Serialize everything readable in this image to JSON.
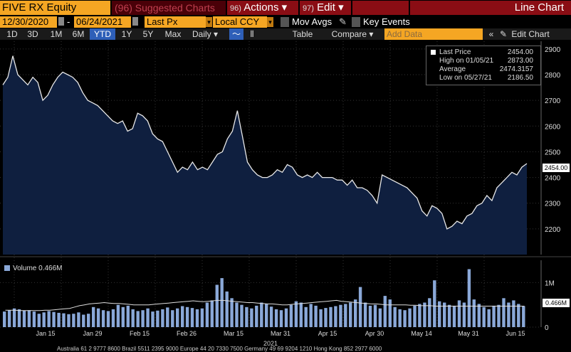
{
  "toolbar": {
    "ticker": "FIVE RX Equity",
    "suggested": "Suggested Charts",
    "suggested_num": "(96)",
    "actions_num": "96)",
    "actions": "Actions ▾",
    "edit_num": "97)",
    "edit": "Edit ▾",
    "title": "Line Chart"
  },
  "controls": {
    "start_date": "12/30/2020",
    "end_date": "06/24/2021",
    "field": "Last Px",
    "currency": "Local CCY",
    "mov_avgs": "Mov Avgs",
    "key_events": "Key Events"
  },
  "periods": [
    "1D",
    "3D",
    "1M",
    "6M",
    "YTD",
    "1Y",
    "5Y",
    "Max"
  ],
  "selected_period": "YTD",
  "frequency": "Daily ▾",
  "table_label": "Table",
  "compare_label": "Compare ▾",
  "add_data_placeholder": "Add Data",
  "edit_chart_label": "Edit Chart",
  "legend": {
    "last_price_label": "Last Price",
    "last_price_value": "2454.00",
    "high_label": "High on 01/05/21",
    "high_value": "2873.00",
    "avg_label": "Average",
    "avg_value": "2474.3157",
    "low_label": "Low on 05/27/21",
    "low_value": "2186.50"
  },
  "last_tag": "2454.00",
  "volume_label": "Volume 0.466M",
  "volume_tag": "0.466M",
  "year_label": "2021",
  "footer": "Australia 61 2 9777 8600 Brazil 5511 2395 9000 Europe 44 20 7330 7500 Germany 49 69 9204 1210 Hong Kong 852 2977 6000",
  "colors": {
    "accent_orange": "#f5a623",
    "header_red": "#8a0d14",
    "area_fill": "#0f1f3f",
    "line": "#e8e8e8",
    "volume_bar": "#8aa8d8"
  },
  "chart_data": {
    "type": "area",
    "price_axis": {
      "ylim": [
        2100,
        2930
      ],
      "ticks": [
        2200,
        2300,
        2400,
        2500,
        2600,
        2700,
        2800,
        2900
      ]
    },
    "volume_axis": {
      "ylim": [
        0,
        1.5
      ],
      "ticks": [
        "0",
        "1M"
      ],
      "tick_values": [
        0,
        1
      ]
    },
    "x_ticks": [
      "Jan 15",
      "Jan 29",
      "Feb 15",
      "Feb 26",
      "Mar 15",
      "Mar 31",
      "Apr 15",
      "Apr 30",
      "May 14",
      "May 31",
      "Jun 15"
    ],
    "price": [
      2760,
      2790,
      2873,
      2800,
      2780,
      2760,
      2790,
      2770,
      2700,
      2720,
      2760,
      2790,
      2810,
      2800,
      2790,
      2770,
      2730,
      2700,
      2690,
      2680,
      2660,
      2640,
      2620,
      2610,
      2620,
      2580,
      2590,
      2650,
      2640,
      2620,
      2570,
      2550,
      2540,
      2500,
      2460,
      2420,
      2440,
      2430,
      2460,
      2430,
      2440,
      2430,
      2460,
      2490,
      2500,
      2550,
      2580,
      2660,
      2560,
      2460,
      2430,
      2410,
      2400,
      2400,
      2410,
      2430,
      2420,
      2450,
      2440,
      2410,
      2400,
      2410,
      2400,
      2420,
      2400,
      2400,
      2400,
      2390,
      2390,
      2370,
      2390,
      2360,
      2360,
      2350,
      2330,
      2300,
      2410,
      2400,
      2390,
      2380,
      2370,
      2360,
      2340,
      2320,
      2270,
      2250,
      2290,
      2280,
      2260,
      2200,
      2210,
      2230,
      2220,
      2250,
      2260,
      2290,
      2300,
      2330,
      2310,
      2360,
      2380,
      2400,
      2420,
      2410,
      2440,
      2454
    ],
    "volume": [
      0.35,
      0.38,
      0.42,
      0.4,
      0.37,
      0.38,
      0.35,
      0.3,
      0.33,
      0.36,
      0.34,
      0.32,
      0.31,
      0.29,
      0.3,
      0.33,
      0.28,
      0.3,
      0.45,
      0.42,
      0.38,
      0.36,
      0.4,
      0.5,
      0.45,
      0.48,
      0.4,
      0.36,
      0.38,
      0.42,
      0.35,
      0.37,
      0.4,
      0.44,
      0.38,
      0.42,
      0.47,
      0.45,
      0.43,
      0.4,
      0.42,
      0.55,
      0.6,
      0.95,
      1.1,
      0.8,
      0.65,
      0.55,
      0.5,
      0.45,
      0.42,
      0.48,
      0.55,
      0.52,
      0.46,
      0.4,
      0.38,
      0.42,
      0.5,
      0.58,
      0.55,
      0.45,
      0.52,
      0.48,
      0.4,
      0.43,
      0.45,
      0.47,
      0.5,
      0.52,
      0.55,
      0.62,
      0.9,
      0.55,
      0.48,
      0.5,
      0.42,
      0.7,
      0.62,
      0.45,
      0.4,
      0.38,
      0.42,
      0.48,
      0.52,
      0.55,
      0.65,
      1.05,
      0.58,
      0.55,
      0.5,
      0.48,
      0.6,
      0.55,
      1.3,
      0.62,
      0.52,
      0.45,
      0.4,
      0.48,
      0.5,
      0.65,
      0.55,
      0.6,
      0.52,
      0.47
    ],
    "volume_avg": [
      0.38,
      0.38,
      0.38,
      0.37,
      0.37,
      0.37,
      0.37,
      0.37,
      0.38,
      0.38,
      0.39,
      0.4,
      0.41,
      0.42,
      0.45,
      0.48,
      0.5,
      0.52,
      0.53,
      0.54,
      0.55,
      0.54,
      0.53,
      0.53,
      0.52,
      0.51,
      0.5,
      0.5,
      0.5,
      0.5,
      0.51,
      0.52,
      0.53,
      0.54,
      0.55,
      0.56,
      0.57,
      0.58,
      0.59,
      0.58,
      0.57,
      0.58,
      0.59,
      0.6,
      0.6,
      0.59,
      0.58,
      0.57,
      0.56,
      0.55,
      0.55,
      0.54,
      0.53,
      0.52,
      0.52,
      0.51,
      0.5,
      0.5,
      0.51,
      0.52,
      0.53,
      0.54,
      0.55,
      0.56,
      0.57,
      0.58,
      0.59,
      0.6,
      0.58,
      0.57,
      0.56,
      0.55,
      0.54,
      0.53,
      0.52,
      0.52,
      0.51,
      0.5,
      0.5,
      0.5,
      0.5,
      0.5,
      0.49,
      0.49,
      0.48,
      0.48,
      0.48,
      0.47,
      0.47,
      0.47,
      0.47,
      0.47,
      0.47,
      0.47,
      0.47,
      0.47,
      0.47,
      0.47,
      0.47,
      0.47,
      0.47,
      0.47,
      0.47,
      0.47,
      0.47,
      0.47
    ]
  }
}
